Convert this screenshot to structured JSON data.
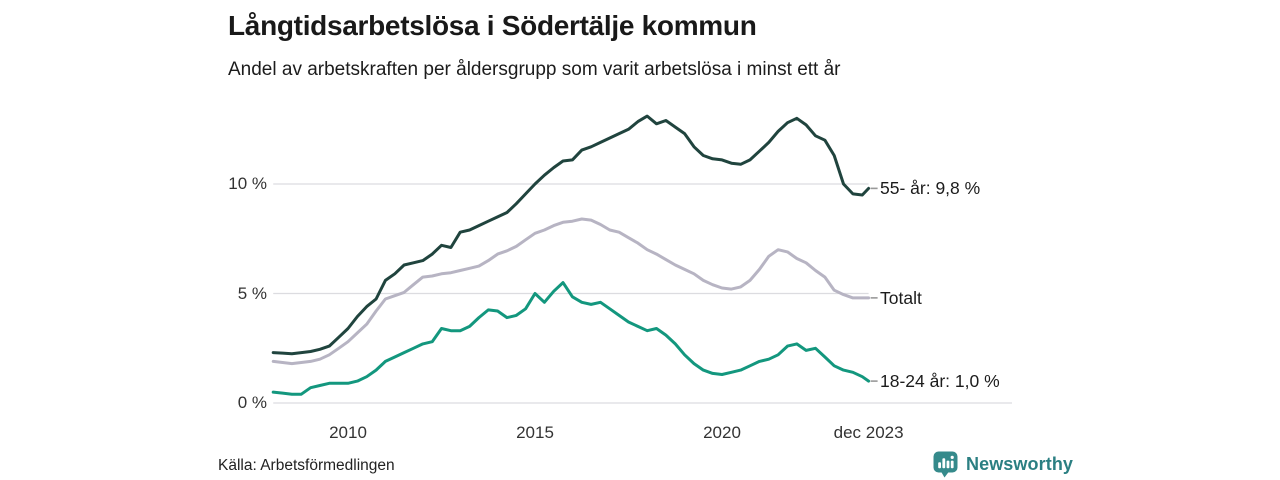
{
  "header": {
    "title": "Långtidsarbetslösa i Södertälje kommun",
    "subtitle": "Andel av arbetskraften per åldersgrupp som varit arbetslösa i minst ett år"
  },
  "source": {
    "label": "Källa: Arbetsförmedlingen"
  },
  "branding": {
    "name": "Newsworthy",
    "color": "#2b7f82",
    "icon": "bar-chart-speech-bubble",
    "icon_color": "#358a8b"
  },
  "colors": {
    "grid": "#dcdce0",
    "axis_text": "#333333",
    "label_text": "#1c1c1c",
    "end_tick": "#999999"
  },
  "chart_data": {
    "type": "line",
    "title": "Långtidsarbetslösa i Södertälje kommun",
    "subtitle": "Andel av arbetskraften per åldersgrupp som varit arbetslösa i minst ett år",
    "unit": "%",
    "grid": true,
    "legend_position": "right-end-labels",
    "x_range": [
      2008.0,
      2023.92
    ],
    "y_range_shown": [
      0,
      13.5
    ],
    "x_axis": {
      "ticks": [
        {
          "value": 2010,
          "label": "2010"
        },
        {
          "value": 2015,
          "label": "2015"
        },
        {
          "value": 2020,
          "label": "2020"
        },
        {
          "value": 2023.92,
          "label": "dec 2023"
        }
      ]
    },
    "y_axis": {
      "ticks": [
        {
          "value": 0,
          "label": "0 %"
        },
        {
          "value": 5,
          "label": "5 %"
        },
        {
          "value": 10,
          "label": "10 %"
        }
      ]
    },
    "x": [
      2008.0,
      2008.25,
      2008.5,
      2008.75,
      2009.0,
      2009.25,
      2009.5,
      2009.75,
      2010.0,
      2010.25,
      2010.5,
      2010.75,
      2011.0,
      2011.25,
      2011.5,
      2011.75,
      2012.0,
      2012.25,
      2012.5,
      2012.75,
      2013.0,
      2013.25,
      2013.5,
      2013.75,
      2014.0,
      2014.25,
      2014.5,
      2014.75,
      2015.0,
      2015.25,
      2015.5,
      2015.75,
      2016.0,
      2016.25,
      2016.5,
      2016.75,
      2017.0,
      2017.25,
      2017.5,
      2017.75,
      2018.0,
      2018.25,
      2018.5,
      2018.75,
      2019.0,
      2019.25,
      2019.5,
      2019.75,
      2020.0,
      2020.25,
      2020.5,
      2020.75,
      2021.0,
      2021.25,
      2021.5,
      2021.75,
      2022.0,
      2022.25,
      2022.5,
      2022.75,
      2023.0,
      2023.25,
      2023.5,
      2023.75,
      2023.92
    ],
    "series": [
      {
        "name": "55- år",
        "end_label": "55- år: 9,8 %",
        "last_value": 9.8,
        "color": "#20443e",
        "values": [
          2.3,
          2.28,
          2.25,
          2.3,
          2.35,
          2.45,
          2.6,
          3.0,
          3.4,
          3.95,
          4.4,
          4.75,
          5.6,
          5.9,
          6.3,
          6.4,
          6.5,
          6.8,
          7.2,
          7.1,
          7.8,
          7.9,
          8.1,
          8.3,
          8.5,
          8.7,
          9.1,
          9.55,
          10.0,
          10.4,
          10.75,
          11.05,
          11.1,
          11.55,
          11.7,
          11.9,
          12.1,
          12.3,
          12.5,
          12.85,
          13.1,
          12.75,
          12.9,
          12.6,
          12.3,
          11.7,
          11.3,
          11.15,
          11.1,
          10.95,
          10.9,
          11.1,
          11.5,
          11.9,
          12.4,
          12.8,
          13.0,
          12.7,
          12.2,
          12.0,
          11.3,
          10.0,
          9.55,
          9.5,
          9.8
        ]
      },
      {
        "name": "Totalt",
        "end_label": "Totalt",
        "last_value": 4.8,
        "color": "#b7b4c3",
        "values": [
          1.9,
          1.85,
          1.8,
          1.85,
          1.9,
          2.0,
          2.2,
          2.5,
          2.8,
          3.2,
          3.6,
          4.2,
          4.75,
          4.9,
          5.05,
          5.4,
          5.75,
          5.8,
          5.9,
          5.95,
          6.05,
          6.15,
          6.25,
          6.5,
          6.8,
          6.95,
          7.15,
          7.45,
          7.75,
          7.9,
          8.1,
          8.25,
          8.3,
          8.4,
          8.35,
          8.15,
          7.9,
          7.8,
          7.55,
          7.3,
          7.0,
          6.8,
          6.55,
          6.3,
          6.1,
          5.9,
          5.6,
          5.4,
          5.25,
          5.2,
          5.3,
          5.6,
          6.1,
          6.7,
          7.0,
          6.9,
          6.6,
          6.4,
          6.05,
          5.75,
          5.15,
          4.95,
          4.8,
          4.8,
          4.8
        ]
      },
      {
        "name": "18-24 år",
        "end_label": "18-24 år: 1,0 %",
        "last_value": 1.0,
        "color": "#13977e",
        "values": [
          0.5,
          0.45,
          0.4,
          0.4,
          0.7,
          0.8,
          0.9,
          0.9,
          0.9,
          1.0,
          1.2,
          1.5,
          1.9,
          2.1,
          2.3,
          2.5,
          2.7,
          2.8,
          3.4,
          3.3,
          3.3,
          3.5,
          3.9,
          4.25,
          4.2,
          3.9,
          4.0,
          4.3,
          5.0,
          4.6,
          5.1,
          5.5,
          4.85,
          4.6,
          4.5,
          4.6,
          4.3,
          4.0,
          3.7,
          3.5,
          3.3,
          3.4,
          3.1,
          2.7,
          2.2,
          1.8,
          1.5,
          1.35,
          1.3,
          1.4,
          1.5,
          1.7,
          1.9,
          2.0,
          2.2,
          2.6,
          2.7,
          2.4,
          2.5,
          2.1,
          1.7,
          1.5,
          1.4,
          1.2,
          1.0
        ]
      }
    ]
  }
}
